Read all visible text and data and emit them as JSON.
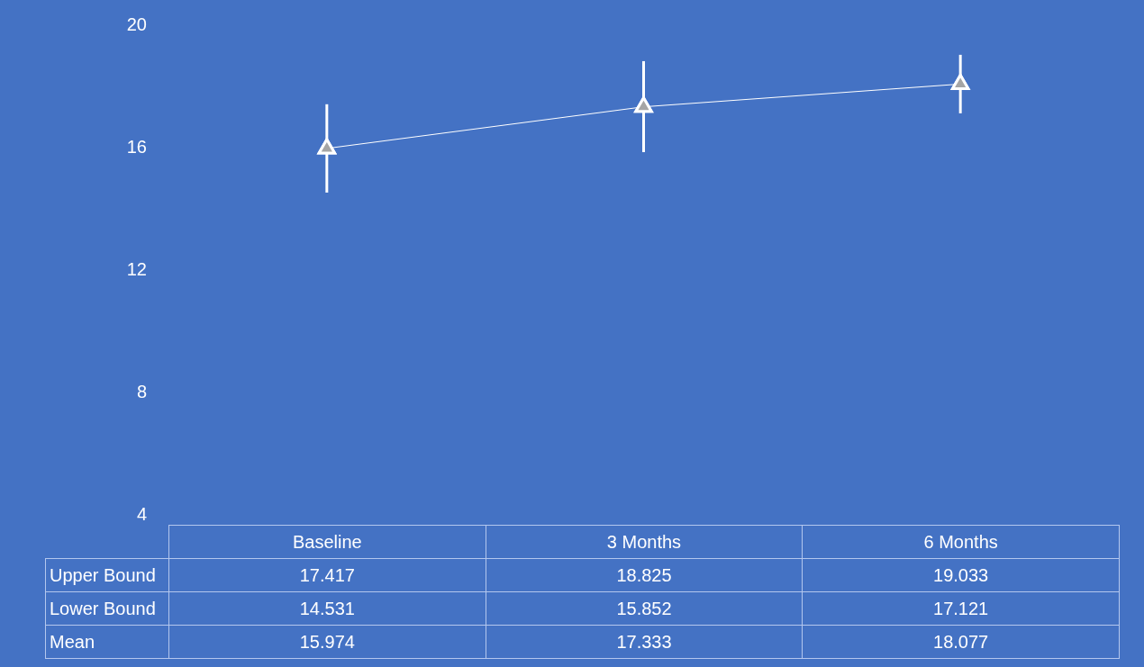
{
  "chart_data": {
    "type": "line",
    "categories": [
      "Baseline",
      "3 Months",
      "6 Months"
    ],
    "series": [
      {
        "name": "Mean",
        "color": "#ffffff",
        "values": [
          15.974,
          17.333,
          18.077
        ],
        "errors": [
          [
            14.531,
            17.417
          ],
          [
            15.852,
            18.825
          ],
          [
            17.121,
            19.033
          ]
        ]
      }
    ],
    "annotations": [
      "Upper Bound",
      "Lower Bound",
      "17.417",
      "18.825",
      "19.033",
      "14.531",
      "15.852",
      "17.121",
      "15.974",
      "17.333",
      "18.077"
    ],
    "ylim": [
      4,
      20
    ],
    "yticks": [
      4,
      8,
      12,
      16,
      20
    ],
    "grid": false,
    "legend": false,
    "marker": "triangle"
  }
}
